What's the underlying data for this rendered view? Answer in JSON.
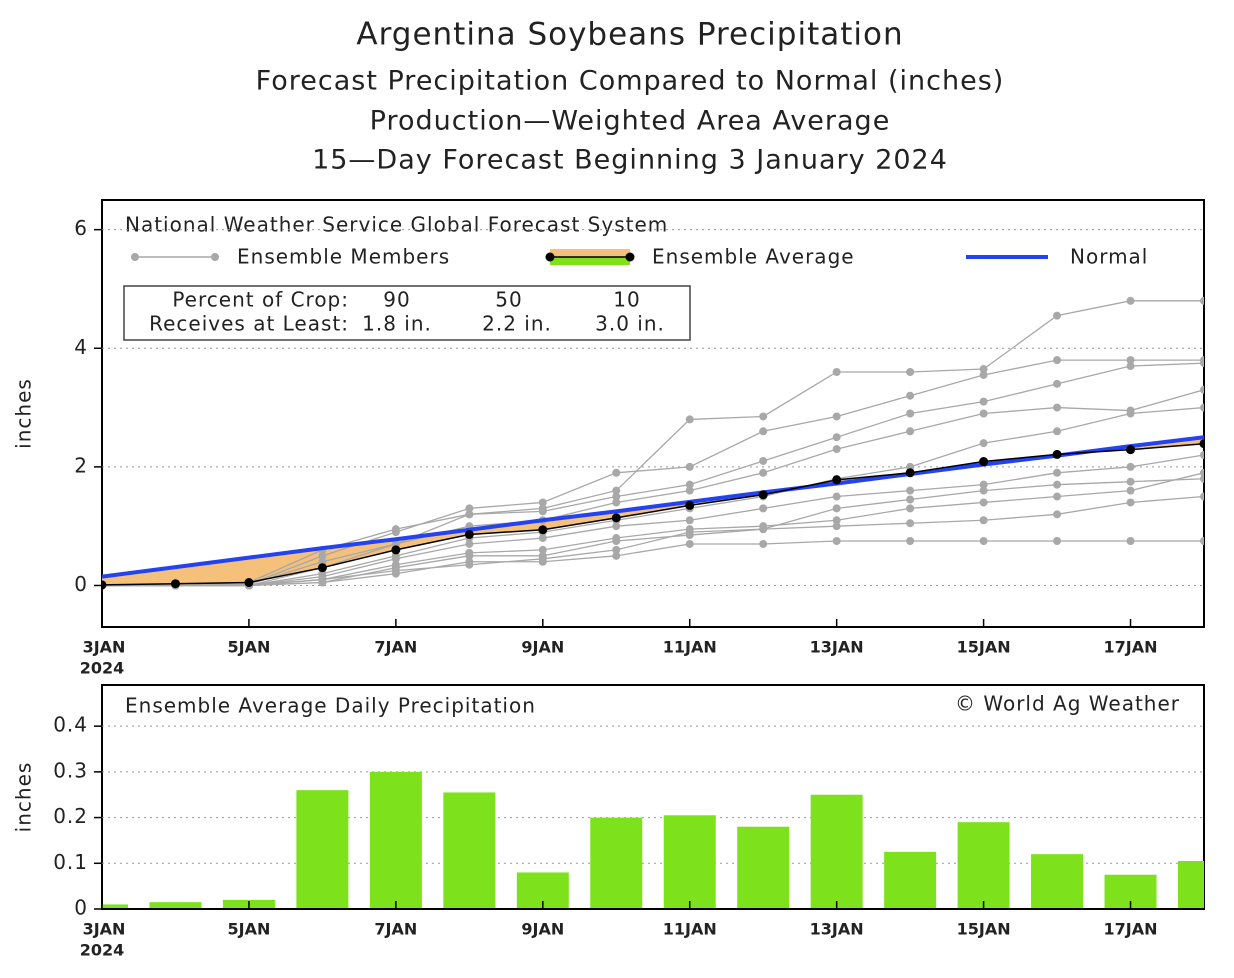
{
  "chart_data": [
    {
      "type": "line",
      "title": "Argentina Soybeans Precipitation",
      "subtitles": [
        "Forecast Precipitation Compared to Normal (inches)",
        "Production—Weighted Area Average",
        "15—Day Forecast Beginning 3 January 2024"
      ],
      "model": "National Weather Service Global Forecast System",
      "ylabel": "inches",
      "categories": [
        "3JAN",
        null,
        "5JAN",
        null,
        "7JAN",
        null,
        "9JAN",
        null,
        "11JAN",
        null,
        "13JAN",
        null,
        "15JAN",
        null,
        "17JAN",
        null
      ],
      "year": "2024",
      "ylim": [
        -0.7,
        6.5
      ],
      "yticks": [
        0,
        2,
        4,
        6
      ],
      "grid": true,
      "members": {
        "name": "Ensemble Members",
        "color": "#a8a8a8",
        "values": [
          [
            0,
            0,
            0,
            0.3,
            0.7,
            1.2,
            1.3,
            1.6,
            2.8,
            2.85,
            3.6,
            3.6,
            3.65,
            4.55,
            4.8,
            4.8
          ],
          [
            0,
            0,
            0.02,
            0.5,
            0.9,
            1.3,
            1.4,
            1.9,
            2.0,
            2.6,
            2.85,
            3.2,
            3.55,
            3.8,
            3.8,
            3.8
          ],
          [
            0,
            0,
            0.05,
            0.6,
            0.95,
            1.2,
            1.25,
            1.5,
            1.7,
            2.1,
            2.5,
            2.9,
            3.1,
            3.4,
            3.7,
            3.75
          ],
          [
            0,
            0,
            0.02,
            0.4,
            0.7,
            1.0,
            1.1,
            1.4,
            1.6,
            1.9,
            2.3,
            2.6,
            2.9,
            3.0,
            2.95,
            3.3
          ],
          [
            0,
            0,
            0,
            0.2,
            0.5,
            0.8,
            0.9,
            1.1,
            1.3,
            1.5,
            1.8,
            2.0,
            2.4,
            2.6,
            2.9,
            3.0
          ],
          [
            0,
            0,
            0,
            0.15,
            0.45,
            0.7,
            0.8,
            1.0,
            1.1,
            1.3,
            1.5,
            1.6,
            1.7,
            1.9,
            2.0,
            2.2
          ],
          [
            0,
            0,
            0,
            0.1,
            0.35,
            0.55,
            0.6,
            0.8,
            0.95,
            1.0,
            1.1,
            1.3,
            1.4,
            1.5,
            1.6,
            1.9
          ],
          [
            0,
            0,
            0,
            0.05,
            0.3,
            0.5,
            0.5,
            0.75,
            0.85,
            0.95,
            1.0,
            1.05,
            1.1,
            1.2,
            1.4,
            1.5
          ],
          [
            0,
            0,
            0,
            0.05,
            0.2,
            0.4,
            0.4,
            0.5,
            0.7,
            0.7,
            0.75,
            0.75,
            0.75,
            0.75,
            0.75,
            0.75
          ],
          [
            0,
            0,
            0,
            0.1,
            0.25,
            0.35,
            0.45,
            0.6,
            0.9,
            0.95,
            1.3,
            1.45,
            1.6,
            1.7,
            1.75,
            1.8
          ]
        ]
      },
      "series": [
        {
          "name": "Ensemble Average",
          "color": "#000000",
          "fill_below": "#f5c07a",
          "fill_above": "#7de21c",
          "values": [
            0.01,
            0.03,
            0.05,
            0.3,
            0.6,
            0.86,
            0.94,
            1.14,
            1.35,
            1.53,
            1.78,
            1.9,
            2.09,
            2.21,
            2.29,
            2.39
          ]
        },
        {
          "name": "Normal",
          "color": "#2342f0",
          "values": [
            0.15,
            0.31,
            0.47,
            0.63,
            0.78,
            0.94,
            1.1,
            1.25,
            1.41,
            1.57,
            1.72,
            1.88,
            2.04,
            2.19,
            2.35,
            2.5
          ]
        }
      ],
      "crop_table": {
        "row_labels": [
          "Percent of Crop:",
          "Receives at Least:"
        ],
        "percents": [
          90,
          50,
          10
        ],
        "amounts": [
          "1.8 in.",
          "2.2 in.",
          "3.0 in."
        ]
      }
    },
    {
      "type": "bar",
      "title": "Ensemble Average Daily Precipitation",
      "credit": "© World Ag Weather",
      "ylabel": "inches",
      "categories": [
        "3JAN",
        null,
        "5JAN",
        null,
        "7JAN",
        null,
        "9JAN",
        null,
        "11JAN",
        null,
        "13JAN",
        null,
        "15JAN",
        null,
        "17JAN",
        null
      ],
      "year": "2024",
      "values": [
        0.01,
        0.015,
        0.02,
        0.26,
        0.3,
        0.255,
        0.08,
        0.2,
        0.205,
        0.18,
        0.25,
        0.125,
        0.19,
        0.12,
        0.075,
        0.105
      ],
      "color": "#7de21c",
      "ylim": [
        0,
        0.49
      ],
      "yticks": [
        0,
        0.1,
        0.2,
        0.3,
        0.4
      ],
      "grid": true
    }
  ]
}
